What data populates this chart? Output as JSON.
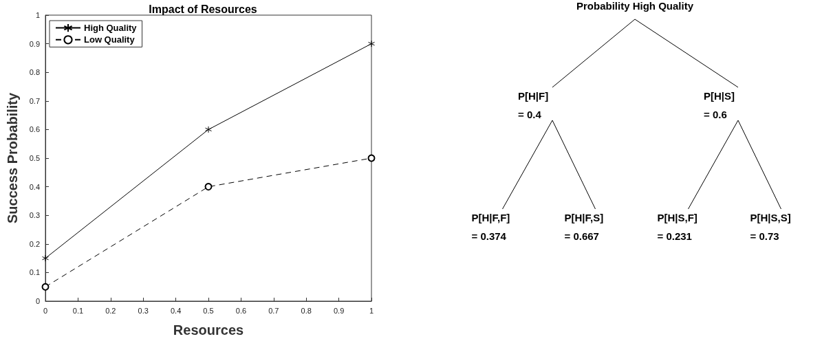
{
  "chart_data": [
    {
      "type": "line",
      "title": "Impact of Resources",
      "xlabel": "Resources",
      "ylabel": "Success Probability",
      "x": [
        0,
        0.5,
        1
      ],
      "xlim": [
        0,
        1
      ],
      "xticks": [
        0,
        0.1,
        0.2,
        0.3,
        0.4,
        0.5,
        0.6,
        0.7,
        0.8,
        0.9,
        1
      ],
      "ylim": [
        0,
        1
      ],
      "yticks": [
        0,
        0.1,
        0.2,
        0.3,
        0.4,
        0.5,
        0.6,
        0.7,
        0.8,
        0.9,
        1
      ],
      "grid": false,
      "legend": "top left",
      "series": [
        {
          "name": "High Quality",
          "color": "#000000",
          "values": [
            0.15,
            0.6,
            0.9
          ],
          "marker": "cross",
          "line_style": "solid"
        },
        {
          "name": "Low Quality",
          "color": "#000000",
          "values": [
            0.05,
            0.4,
            0.5
          ],
          "marker": "circle",
          "line_style": "dashed"
        }
      ]
    },
    {
      "type": "other",
      "title": "Probability High Quality",
      "annotations": [
        "P[H|F]\n= 0.4",
        "P[H|S]\n= 0.6",
        "P[H|F,F]\n= 0.374",
        "P[H|F,S]\n= 0.667",
        "P[H|S,F]\n= 0.231",
        "P[H|S,S]\n= 0.73"
      ]
    }
  ]
}
